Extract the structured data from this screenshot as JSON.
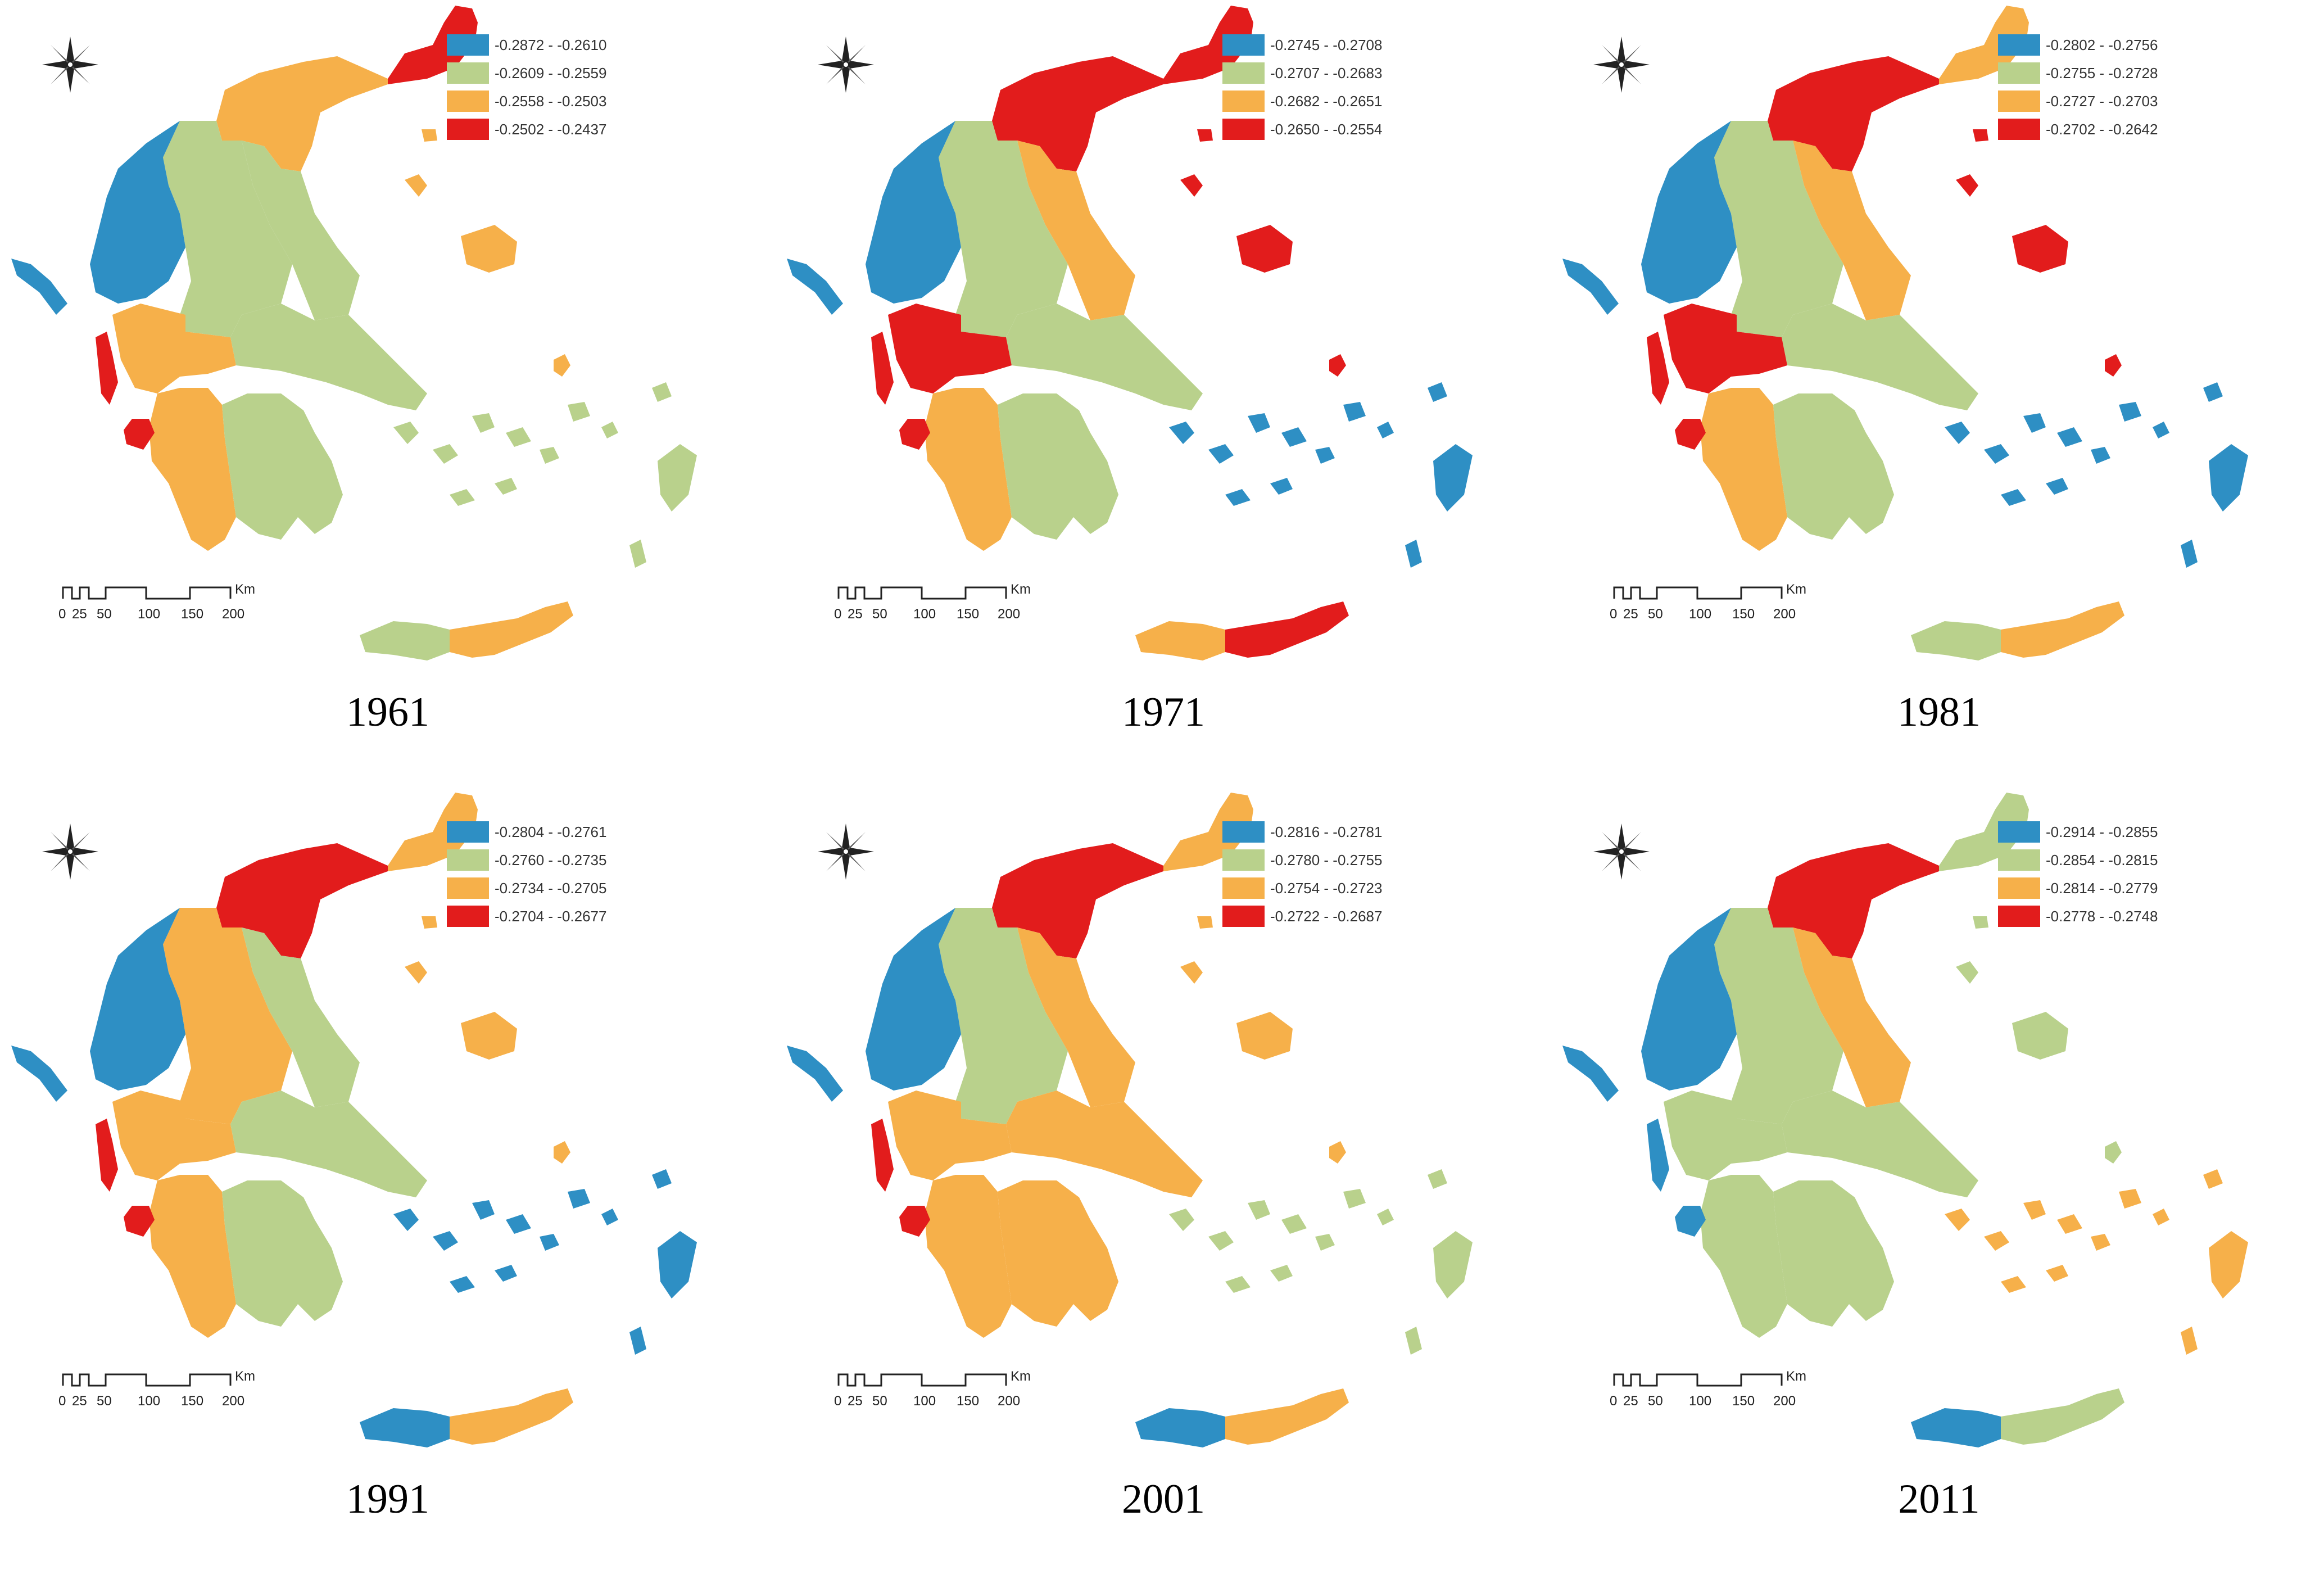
{
  "legend_colors": {
    "class1": "#2e8fc4",
    "class2": "#b9d18c",
    "class3": "#f6b04a",
    "class4": "#e21c1c"
  },
  "scale_bar": {
    "ticks": [
      "0",
      "25",
      "50",
      "100",
      "150",
      "200"
    ],
    "unit": "Km"
  },
  "compass": {
    "icon": "north-arrow-compass-icon"
  },
  "panels": [
    {
      "year": "1961",
      "legend": [
        "-0.2872 - -0.2610",
        "-0.2609 - -0.2559",
        "-0.2558 - -0.2503",
        "-0.2502 - -0.2437"
      ],
      "regions": {
        "epirus": 1,
        "west_macedonia": 2,
        "central_macedonia": 3,
        "east_macedonia_thrace": 4,
        "thessaly": 2,
        "central_greece": 2,
        "western_greece": 3,
        "ionian_islands": 4,
        "peloponnese": 2,
        "peloponnese_west": 3,
        "north_aegean": 3,
        "south_aegean": 2,
        "crete_west": 2,
        "crete_east": 3
      }
    },
    {
      "year": "1971",
      "legend": [
        "-0.2745 - -0.2708",
        "-0.2707 - -0.2683",
        "-0.2682 - -0.2651",
        "-0.2650 - -0.2554"
      ],
      "regions": {
        "epirus": 1,
        "west_macedonia": 2,
        "central_macedonia": 4,
        "east_macedonia_thrace": 4,
        "thessaly": 3,
        "central_greece": 2,
        "western_greece": 4,
        "ionian_islands": 4,
        "peloponnese": 2,
        "peloponnese_west": 3,
        "north_aegean": 4,
        "south_aegean": 1,
        "crete_west": 3,
        "crete_east": 4
      }
    },
    {
      "year": "1981",
      "legend": [
        "-0.2802 - -0.2756",
        "-0.2755 - -0.2728",
        "-0.2727 - -0.2703",
        "-0.2702 - -0.2642"
      ],
      "regions": {
        "epirus": 1,
        "west_macedonia": 2,
        "central_macedonia": 4,
        "east_macedonia_thrace": 3,
        "thessaly": 3,
        "central_greece": 2,
        "western_greece": 4,
        "ionian_islands": 4,
        "peloponnese": 2,
        "peloponnese_west": 3,
        "north_aegean": 4,
        "south_aegean": 1,
        "crete_west": 2,
        "crete_east": 3
      }
    },
    {
      "year": "1991",
      "legend": [
        "-0.2804 - -0.2761",
        "-0.2760 - -0.2735",
        "-0.2734 - -0.2705",
        "-0.2704 - -0.2677"
      ],
      "regions": {
        "epirus": 1,
        "west_macedonia": 3,
        "central_macedonia": 4,
        "east_macedonia_thrace": 3,
        "thessaly": 2,
        "central_greece": 2,
        "western_greece": 3,
        "ionian_islands": 4,
        "peloponnese": 2,
        "peloponnese_west": 3,
        "north_aegean": 3,
        "south_aegean": 1,
        "crete_west": 1,
        "crete_east": 3
      }
    },
    {
      "year": "2001",
      "legend": [
        "-0.2816 - -0.2781",
        "-0.2780 - -0.2755",
        "-0.2754 - -0.2723",
        "-0.2722 - -0.2687"
      ],
      "regions": {
        "epirus": 1,
        "west_macedonia": 2,
        "central_macedonia": 4,
        "east_macedonia_thrace": 3,
        "thessaly": 3,
        "central_greece": 3,
        "western_greece": 3,
        "ionian_islands": 4,
        "peloponnese": 3,
        "peloponnese_west": 3,
        "north_aegean": 3,
        "south_aegean": 2,
        "crete_west": 1,
        "crete_east": 3
      }
    },
    {
      "year": "2011",
      "legend": [
        "-0.2914 - -0.2855",
        "-0.2854 - -0.2815",
        "-0.2814 - -0.2779",
        "-0.2778 - -0.2748"
      ],
      "regions": {
        "epirus": 1,
        "west_macedonia": 2,
        "central_macedonia": 4,
        "east_macedonia_thrace": 2,
        "thessaly": 3,
        "central_greece": 2,
        "western_greece": 2,
        "ionian_islands": 1,
        "peloponnese": 2,
        "peloponnese_west": 2,
        "north_aegean": 2,
        "south_aegean": 3,
        "crete_west": 1,
        "crete_east": 2
      }
    }
  ]
}
